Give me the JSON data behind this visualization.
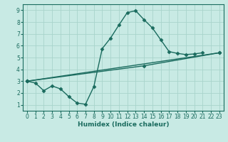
{
  "xlabel": "Humidex (Indice chaleur)",
  "xlim": [
    -0.5,
    23.5
  ],
  "ylim": [
    0.5,
    9.5
  ],
  "xticks": [
    0,
    1,
    2,
    3,
    4,
    5,
    6,
    7,
    8,
    9,
    10,
    11,
    12,
    13,
    14,
    15,
    16,
    17,
    18,
    19,
    20,
    21,
    22,
    23
  ],
  "yticks": [
    1,
    2,
    3,
    4,
    5,
    6,
    7,
    8,
    9
  ],
  "bg_color": "#c8eae4",
  "line_color": "#1a6b5e",
  "grid_color": "#a8d4cc",
  "line1_x": [
    0,
    1,
    2,
    3,
    4,
    5,
    6,
    7,
    8,
    9,
    10,
    11,
    12,
    13,
    14,
    15,
    16,
    17,
    18,
    19,
    20,
    21
  ],
  "line1_y": [
    3.0,
    2.85,
    2.2,
    2.6,
    2.35,
    1.7,
    1.15,
    1.05,
    2.55,
    5.75,
    6.65,
    7.75,
    8.8,
    8.95,
    8.2,
    7.5,
    6.5,
    5.5,
    5.35,
    5.25,
    5.3,
    5.4
  ],
  "line2_x": [
    0,
    23
  ],
  "line2_y": [
    3.0,
    5.4
  ],
  "line3_x": [
    0,
    14,
    23
  ],
  "line3_y": [
    3.0,
    4.3,
    5.4
  ],
  "marker": "D",
  "markersize": 2.5,
  "linewidth": 1.0
}
